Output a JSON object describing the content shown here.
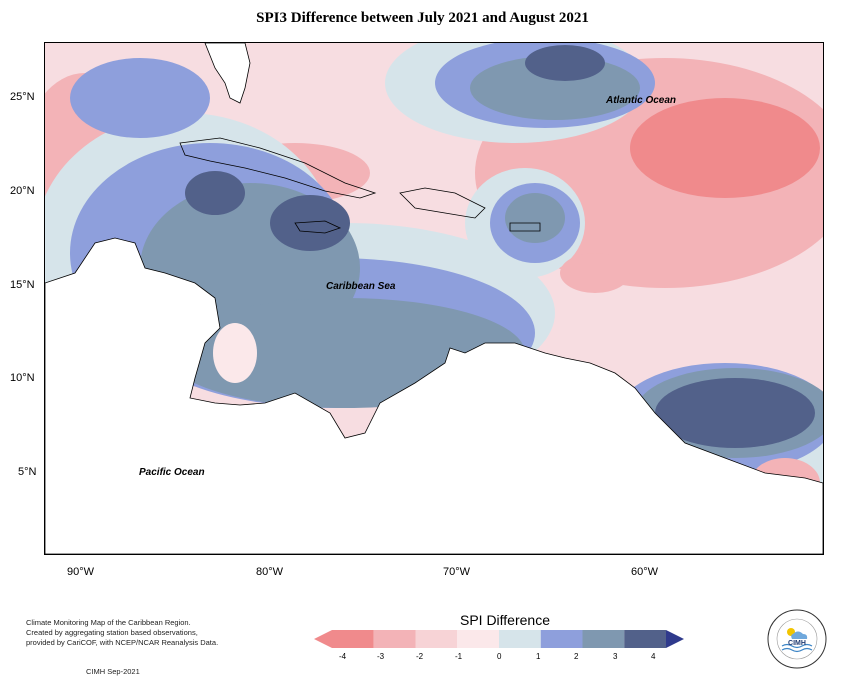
{
  "title": "SPI3 Difference between July 2021 and August 2021",
  "map": {
    "lat_ticks": [
      "25°N",
      "20°N",
      "15°N",
      "10°N",
      "5°N"
    ],
    "lon_ticks": [
      "90°W",
      "80°W",
      "70°W",
      "60°W"
    ],
    "labels": {
      "atlantic": "Atlantic Ocean",
      "caribbean": "Caribbean Sea",
      "pacific": "Pacific Ocean"
    }
  },
  "legend": {
    "title": "SPI Difference",
    "ticks": [
      "-4",
      "-3",
      "-2",
      "-1",
      "0",
      "1",
      "2",
      "3",
      "4"
    ],
    "colors": [
      "#f08a8c",
      "#f3b3b7",
      "#f7d3d6",
      "#fbe8ea",
      "#d6e4ea",
      "#8e9fdc",
      "#7f98b0",
      "#52618a",
      "#2f3a8c"
    ]
  },
  "credit": {
    "line1": "Climate Monitoring Map of the Caribbean Region.",
    "line2": "Created by aggregating station based observations,",
    "line3": "provided by CariCOF, with NCEP/NCAR Reanalysis Data.",
    "date": "CIMH Sep-2021"
  },
  "logo": {
    "text": "CIMH"
  }
}
